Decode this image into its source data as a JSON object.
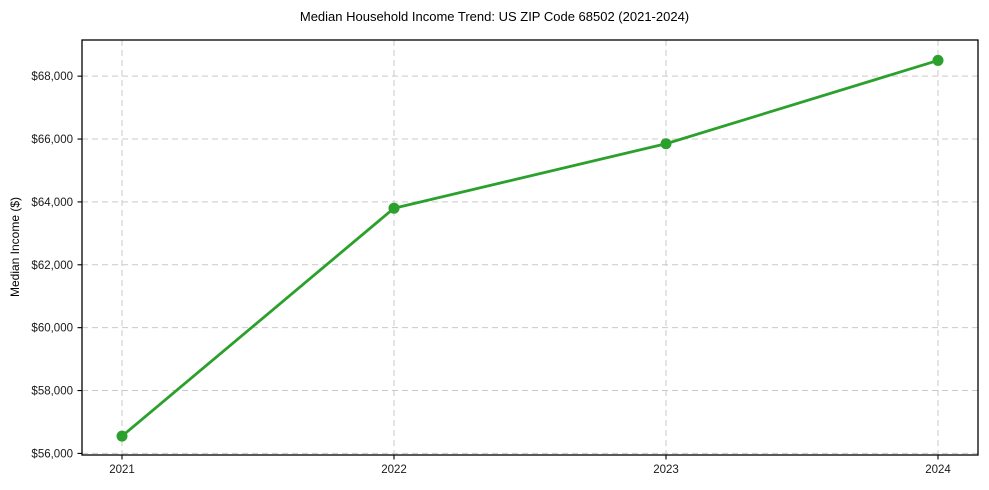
{
  "page": {
    "background": "#ffffff"
  },
  "chart_data": {
    "type": "line",
    "title": "Median Household Income Trend: US ZIP Code 68502 (2021-2024)",
    "xlabel": "",
    "ylabel": "Median Income ($)",
    "categories": [
      "2021",
      "2022",
      "2023",
      "2024"
    ],
    "series": [
      {
        "values": [
          56550,
          63800,
          65850,
          68500
        ],
        "color": "#2ca02c",
        "marker": "circle",
        "line_width": 2.8,
        "marker_radius": 5.5
      }
    ],
    "ylim": [
      55950,
      69150
    ],
    "yticks": [
      56000,
      58000,
      60000,
      62000,
      64000,
      66000,
      68000
    ],
    "ytick_labels": [
      "$56,000",
      "$58,000",
      "$60,000",
      "$62,000",
      "$64,000",
      "$66,000",
      "$68,000"
    ],
    "grid": true,
    "grid_style": "dashed",
    "grid_color": "#c9c9c9",
    "axis_color": "#000000",
    "tick_label_color": "#1a1a1a",
    "legend_position": "none"
  }
}
